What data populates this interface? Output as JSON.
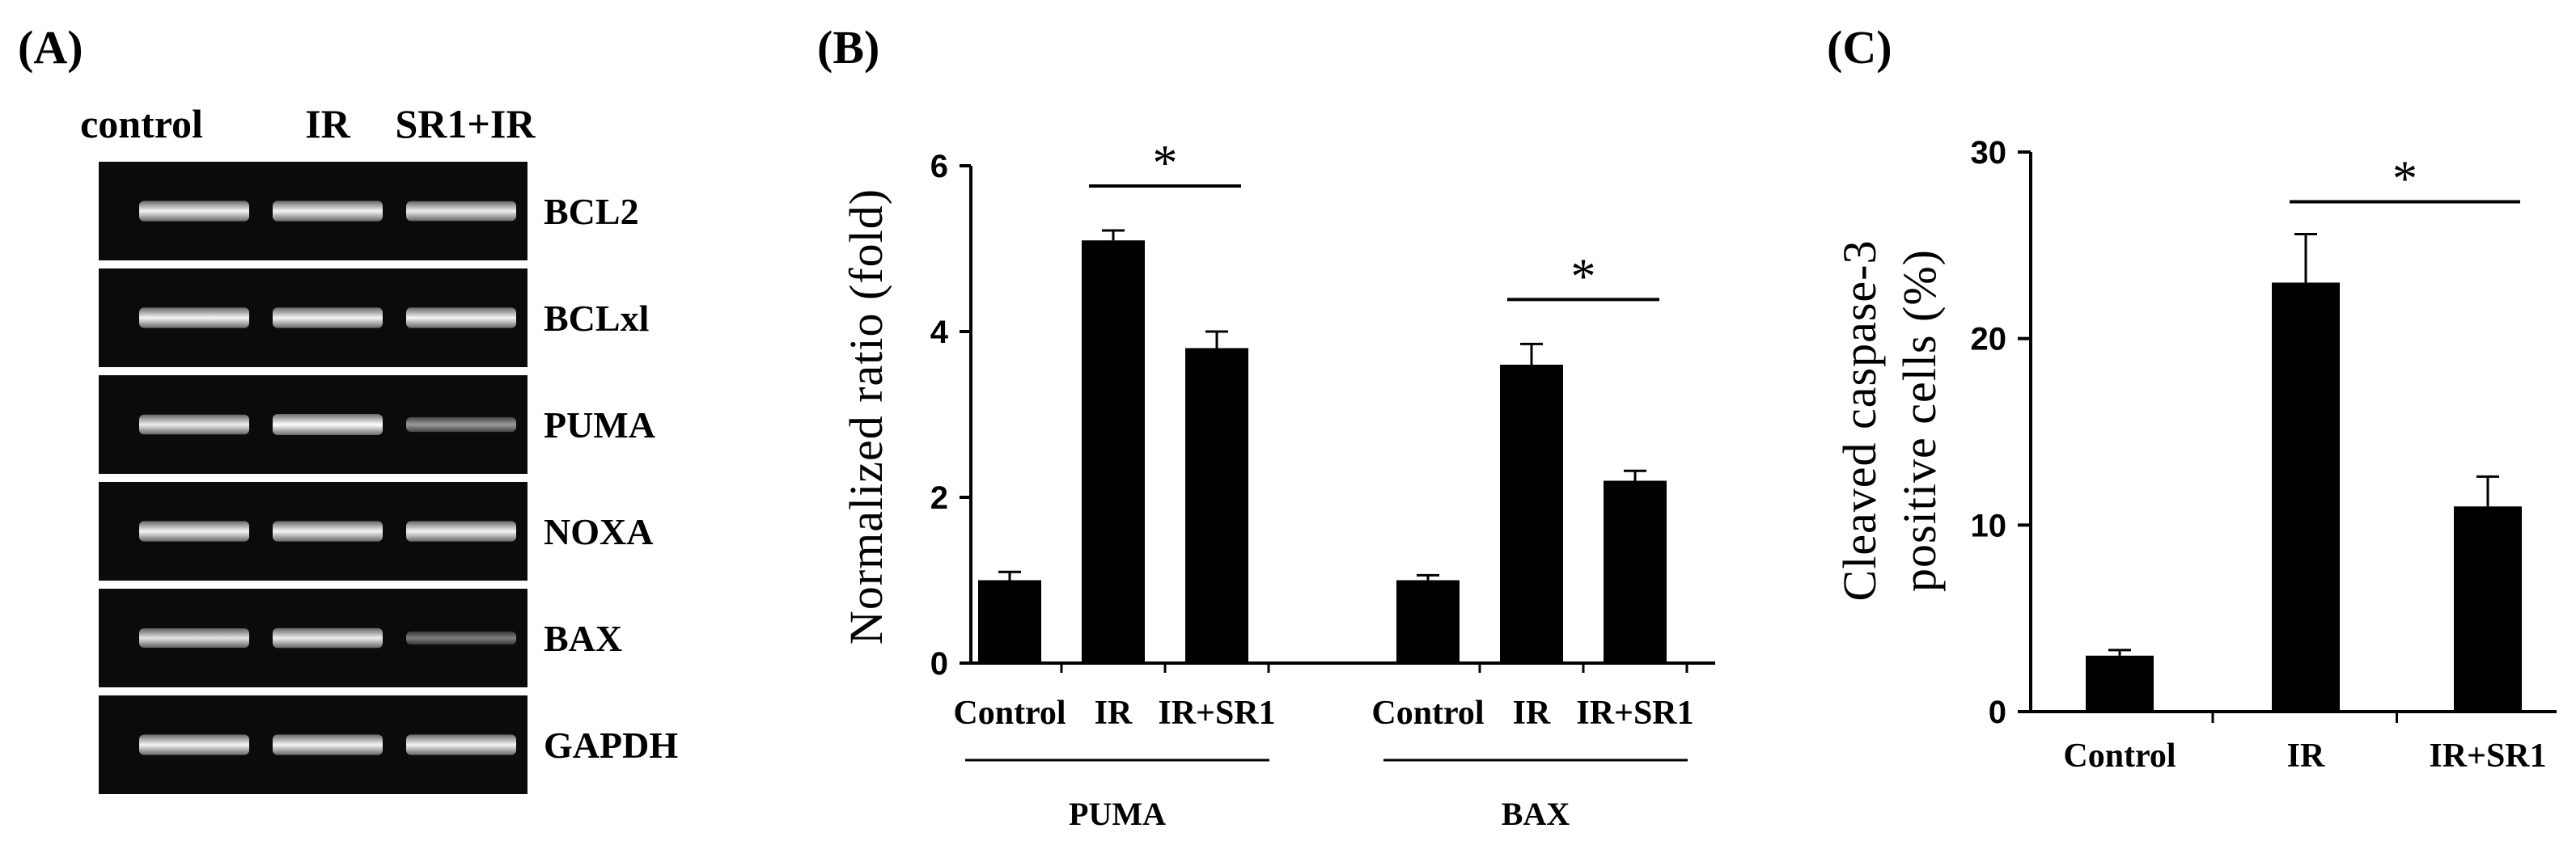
{
  "panels": {
    "a": "(A)",
    "b": "(B)",
    "c": "(C)"
  },
  "gel": {
    "lanes": [
      "control",
      "IR",
      "SR1+IR"
    ],
    "genes": [
      "BCL2",
      "BCLxl",
      "PUMA",
      "NOXA",
      "BAX",
      "GAPDH"
    ],
    "band_intensity": [
      [
        0.95,
        0.95,
        0.9
      ],
      [
        0.95,
        0.95,
        0.95
      ],
      [
        0.9,
        1.0,
        0.45
      ],
      [
        0.95,
        0.95,
        0.95
      ],
      [
        0.85,
        0.9,
        0.3
      ],
      [
        0.95,
        0.95,
        0.95
      ]
    ]
  },
  "chart_data": [
    {
      "id": "B",
      "type": "bar",
      "title": "",
      "xlabel": "",
      "ylabel": "Normalized  ratio  (fold)",
      "ylim": [
        0,
        6
      ],
      "yticks": [
        "0",
        "2",
        "4",
        "6"
      ],
      "groups": [
        {
          "name": "PUMA",
          "categories": [
            "Control",
            "IR",
            "IR+SR1"
          ],
          "values": [
            1.0,
            5.1,
            3.8
          ],
          "errors": [
            0.1,
            0.12,
            0.2
          ],
          "significance": {
            "between": [
              1,
              2
            ],
            "label": "*"
          }
        },
        {
          "name": "BAX",
          "categories": [
            "Control",
            "IR",
            "IR+SR1"
          ],
          "values": [
            1.0,
            3.6,
            2.2
          ],
          "errors": [
            0.06,
            0.25,
            0.12
          ],
          "significance": {
            "between": [
              1,
              2
            ],
            "label": "*"
          }
        }
      ]
    },
    {
      "id": "C",
      "type": "bar",
      "title": "",
      "xlabel": "",
      "ylabel_line1": "Cleaved  caspase-3",
      "ylabel_line2": "positive  cells  (%)",
      "ylim": [
        0,
        30
      ],
      "yticks": [
        "0",
        "10",
        "20",
        "30"
      ],
      "categories": [
        "Control",
        "IR",
        "IR+SR1"
      ],
      "values": [
        3.0,
        23.0,
        11.0
      ],
      "errors": [
        0.3,
        2.6,
        1.6
      ],
      "significance": {
        "between": [
          1,
          2
        ],
        "label": "*"
      }
    }
  ]
}
